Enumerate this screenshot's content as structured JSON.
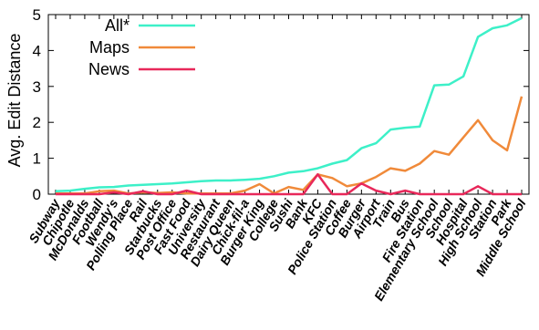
{
  "chart_data": {
    "type": "line",
    "ylabel": "Avg. Edit Distance",
    "xlabel": "",
    "ylim": [
      0,
      5
    ],
    "yticks": [
      "0",
      "1",
      "2",
      "3",
      "4",
      "5"
    ],
    "grid": false,
    "legend_position": "top-left",
    "categories": [
      "Subway",
      "Chipotle",
      "McDonalds",
      "Football",
      "Wendy's",
      "Polling Place",
      "Rail",
      "Starbucks",
      "Post Office",
      "Fast Food",
      "University",
      "Restaurant",
      "Dairy Queen",
      "Chick-fil-a",
      "Burger King",
      "College",
      "Sushi",
      "Bank",
      "KFC",
      "Police Station",
      "Coffee",
      "Burger",
      "Airport",
      "Train",
      "Bus",
      "Fire Station",
      "Elementary School",
      "School",
      "Hospital",
      "High School",
      "Station",
      "Park",
      "Middle School"
    ],
    "series": [
      {
        "name": "All*",
        "color": "#3df0c8",
        "values": [
          0.08,
          0.1,
          0.15,
          0.19,
          0.2,
          0.24,
          0.26,
          0.28,
          0.3,
          0.33,
          0.36,
          0.38,
          0.38,
          0.4,
          0.43,
          0.5,
          0.6,
          0.64,
          0.72,
          0.85,
          0.95,
          1.28,
          1.42,
          1.8,
          1.85,
          1.88,
          3.03,
          3.05,
          3.28,
          4.38,
          4.62,
          4.7,
          4.9
        ]
      },
      {
        "name": "Maps",
        "color": "#f08a3a",
        "values": [
          0.02,
          0.02,
          0.02,
          0.08,
          0.1,
          0.02,
          0.05,
          0.03,
          0.05,
          0.02,
          0.02,
          0.02,
          0.02,
          0.1,
          0.28,
          0.02,
          0.2,
          0.12,
          0.55,
          0.45,
          0.22,
          0.3,
          0.48,
          0.72,
          0.65,
          0.85,
          1.2,
          1.1,
          1.58,
          2.06,
          1.5,
          1.22,
          2.72
        ]
      },
      {
        "name": "News",
        "color": "#e8285a",
        "values": [
          0.0,
          0.0,
          0.0,
          0.0,
          0.05,
          0.0,
          0.08,
          0.0,
          0.0,
          0.1,
          0.0,
          0.0,
          0.0,
          0.0,
          0.0,
          0.0,
          0.0,
          0.0,
          0.55,
          0.0,
          0.0,
          0.3,
          0.1,
          0.0,
          0.1,
          0.0,
          0.0,
          0.0,
          0.0,
          0.22,
          0.0,
          0.0,
          0.0
        ]
      }
    ]
  }
}
